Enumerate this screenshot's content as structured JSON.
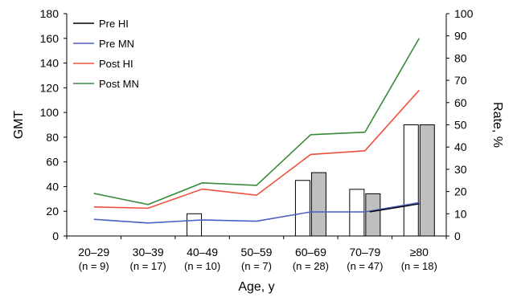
{
  "chart_data": {
    "type": "bar+line",
    "xlabel": "Age, y",
    "ylabel_left": "GMT",
    "ylabel_right": "Rate, %",
    "ylim_left": [
      0,
      180
    ],
    "ylim_right": [
      0,
      100
    ],
    "yticks_left": [
      "0",
      "20",
      "40",
      "60",
      "80",
      "100",
      "120",
      "140",
      "160",
      "180"
    ],
    "yticks_right": [
      "0",
      "10",
      "20",
      "30",
      "40",
      "50",
      "60",
      "70",
      "80",
      "90",
      "100"
    ],
    "categories": [
      {
        "label": "20–29",
        "n": "(n = 9)"
      },
      {
        "label": "30–39",
        "n": "(n = 17)"
      },
      {
        "label": "40–49",
        "n": "(n = 10)"
      },
      {
        "label": "50–59",
        "n": "(n = 7)"
      },
      {
        "label": "60–69",
        "n": "(n = 28)"
      },
      {
        "label": "70–79",
        "n": "(n = 47)"
      },
      {
        "label": "≥80",
        "n": "(n = 18)"
      }
    ],
    "bars": [
      {
        "axis": "right",
        "color": "#ffffff",
        "values": [
          0,
          0,
          10,
          0,
          25,
          21,
          50
        ]
      },
      {
        "axis": "right",
        "color": "#bfbfbf",
        "values": [
          0,
          0,
          0,
          0,
          28.5,
          19,
          50
        ]
      }
    ],
    "series": [
      {
        "name": "Pre HI",
        "color": "#000000",
        "axis": "left",
        "values": [
          null,
          null,
          null,
          null,
          null,
          null,
          26
        ]
      },
      {
        "name": "Pre MN",
        "color": "#4a5fc1",
        "axis": "left",
        "values": [
          13.5,
          10.5,
          13,
          12,
          19.5,
          19.5,
          27
        ]
      },
      {
        "name": "Post HI",
        "color": "#f0503c",
        "axis": "left",
        "values": [
          23.5,
          22.5,
          38,
          33,
          66,
          69,
          118
        ]
      },
      {
        "name": "Post MN",
        "color": "#3a8a3a",
        "axis": "left",
        "values": [
          34.5,
          25.5,
          43,
          41,
          82,
          84,
          160
        ]
      }
    ],
    "legend": "top-left"
  }
}
